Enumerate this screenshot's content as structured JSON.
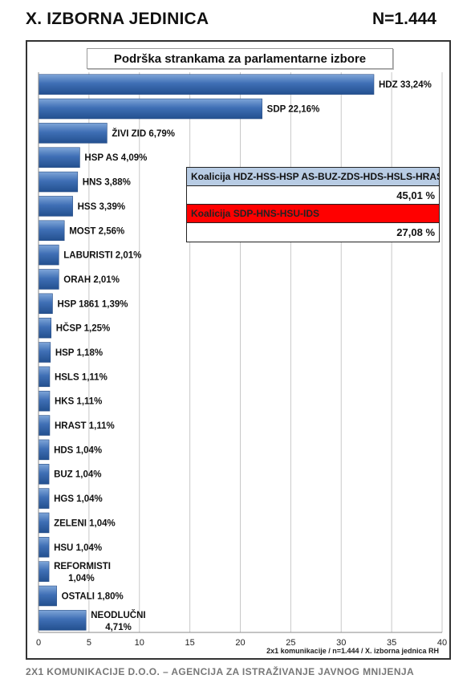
{
  "header": {
    "title": "X. IZBORNA JEDINICA",
    "sample": "N=1.444"
  },
  "footer": {
    "text": "2X1 KOMUNIKACIJE D.O.O.  – AGENCIJA ZA ISTRAŽIVANJE JAVNOG MNIJENJA"
  },
  "coalitions": [
    {
      "name": "Koalicija HDZ-HSS-HSP AS-BUZ-ZDS-HDS-HSLS-HRAST",
      "value": "45,01 %",
      "color": "#b8cce4"
    },
    {
      "name": "Koalicija SDP-HNS-HSU-IDS",
      "value": "27,08 %",
      "color": "#ff0000"
    }
  ],
  "chart_data": {
    "type": "bar",
    "orientation": "horizontal",
    "title": "Podrška strankama za parlamentarne izbore",
    "source_note": "2x1 komunikacije / n=1.444 / X. izborna jednica RH",
    "xlim": [
      0,
      40
    ],
    "xticks": [
      0,
      5,
      10,
      15,
      20,
      25,
      30,
      35,
      40
    ],
    "grid": true,
    "bar_color": "#4f81bd",
    "categories": [
      "HDZ",
      "SDP",
      "ŽIVI ZID",
      "HSP AS",
      "HNS",
      "HSS",
      "MOST",
      "LABURISTI",
      "ORAH",
      "HSP 1861",
      "HČSP",
      "HSP",
      "HSLS",
      "HKS",
      "HRAST",
      "HDS",
      "BUZ",
      "HGS",
      "ZELENI",
      "HSU",
      "REFORMISTI",
      "OSTALI",
      "NEODLUČNI"
    ],
    "values": [
      33.24,
      22.16,
      6.79,
      4.09,
      3.88,
      3.39,
      2.56,
      2.01,
      2.01,
      1.39,
      1.25,
      1.18,
      1.11,
      1.11,
      1.11,
      1.04,
      1.04,
      1.04,
      1.04,
      1.04,
      1.04,
      1.8,
      4.71
    ],
    "labels": [
      "HDZ 33,24%",
      "SDP 22,16%",
      "ŽIVI ZID 6,79%",
      "HSP AS 4,09%",
      "HNS 3,88%",
      "HSS 3,39%",
      "MOST 2,56%",
      "LABURISTI 2,01%",
      "ORAH 2,01%",
      "HSP 1861 1,39%",
      "HČSP 1,25%",
      "HSP 1,18%",
      "HSLS 1,11%",
      "HKS 1,11%",
      "HRAST 1,11%",
      "HDS 1,04%",
      "BUZ 1,04%",
      "HGS 1,04%",
      "ZELENI 1,04%",
      "HSU 1,04%",
      "REFORMISTI\n1,04%",
      "OSTALI 1,80%",
      "NEODLUČNI\n4,71%"
    ]
  }
}
